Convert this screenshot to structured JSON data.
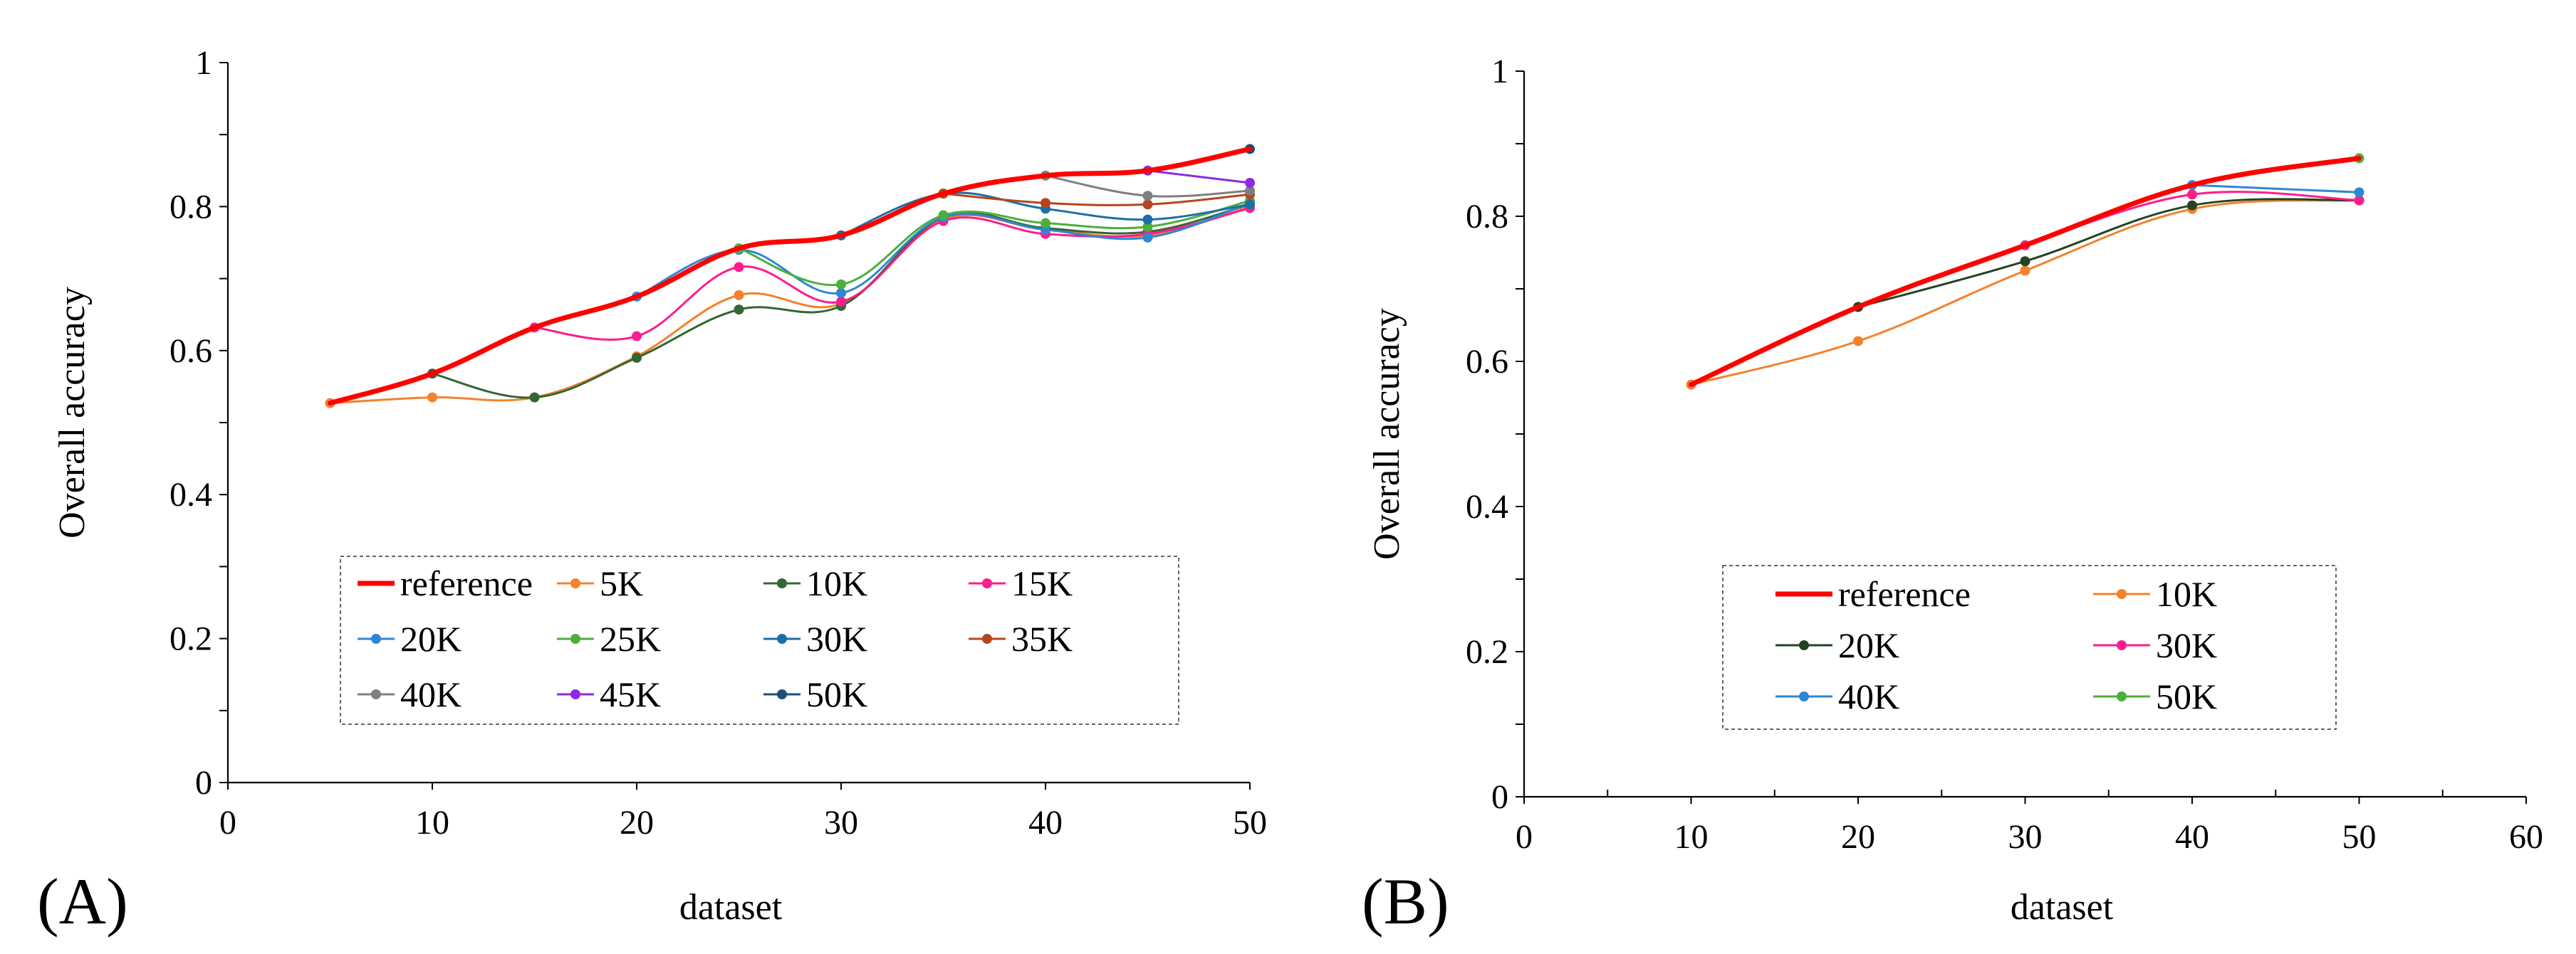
{
  "chart_data": [
    {
      "type": "line",
      "panel_label": "(A)",
      "xlabel": "dataset",
      "ylabel": "Overall accuracy",
      "xlim": [
        0,
        50
      ],
      "ylim": [
        0,
        1
      ],
      "x_ticks": [
        "0",
        "10",
        "20",
        "30",
        "40",
        "50"
      ],
      "y_ticks": [
        "0",
        "0.2",
        "0.4",
        "0.6",
        "0.8",
        "1"
      ],
      "legend_position": "bottom-center",
      "series": [
        {
          "name": "reference",
          "color": "#ff0000",
          "marker": false,
          "x": [
            5,
            10,
            15,
            20,
            25,
            30,
            35,
            40,
            45,
            50
          ],
          "values": [
            0.527,
            0.568,
            0.632,
            0.675,
            0.742,
            0.76,
            0.818,
            0.843,
            0.85,
            0.88
          ]
        },
        {
          "name": "5K",
          "color": "#f4812c",
          "marker": true,
          "x": [
            5,
            10,
            15,
            20,
            25,
            30,
            35,
            40,
            45,
            50
          ],
          "values": [
            0.527,
            0.535,
            0.535,
            0.592,
            0.677,
            0.665,
            0.782,
            0.768,
            0.76,
            0.8
          ]
        },
        {
          "name": "10K",
          "color": "#336633",
          "marker": true,
          "x": [
            10,
            15,
            20,
            25,
            30,
            35,
            40,
            45,
            50
          ],
          "values": [
            0.568,
            0.535,
            0.59,
            0.657,
            0.662,
            0.785,
            0.77,
            0.765,
            0.803
          ]
        },
        {
          "name": "15K",
          "color": "#ff1c8c",
          "marker": true,
          "x": [
            15,
            20,
            25,
            30,
            35,
            40,
            45,
            50
          ],
          "values": [
            0.632,
            0.62,
            0.716,
            0.668,
            0.78,
            0.762,
            0.762,
            0.798
          ]
        },
        {
          "name": "20K",
          "color": "#2f86d3",
          "marker": true,
          "x": [
            20,
            25,
            30,
            35,
            40,
            45,
            50
          ],
          "values": [
            0.675,
            0.74,
            0.68,
            0.785,
            0.768,
            0.757,
            0.805
          ]
        },
        {
          "name": "25K",
          "color": "#4caf3a",
          "marker": true,
          "x": [
            25,
            30,
            35,
            40,
            45,
            50
          ],
          "values": [
            0.742,
            0.692,
            0.788,
            0.777,
            0.772,
            0.808
          ]
        },
        {
          "name": "30K",
          "color": "#1b6fa6",
          "marker": true,
          "x": [
            30,
            35,
            40,
            45,
            50
          ],
          "values": [
            0.76,
            0.818,
            0.797,
            0.782,
            0.803
          ]
        },
        {
          "name": "35K",
          "color": "#b5461b",
          "marker": true,
          "x": [
            35,
            40,
            45,
            50
          ],
          "values": [
            0.818,
            0.805,
            0.803,
            0.817
          ]
        },
        {
          "name": "40K",
          "color": "#7f7f7f",
          "marker": true,
          "x": [
            40,
            45,
            50
          ],
          "values": [
            0.843,
            0.815,
            0.822
          ]
        },
        {
          "name": "45K",
          "color": "#8a2be2",
          "marker": true,
          "x": [
            45,
            50
          ],
          "values": [
            0.85,
            0.833
          ]
        },
        {
          "name": "50K",
          "color": "#1f4e79",
          "marker": true,
          "x": [
            50
          ],
          "values": [
            0.88
          ]
        }
      ]
    },
    {
      "type": "line",
      "panel_label": "(B)",
      "xlabel": "dataset",
      "ylabel": "Overall accuracy",
      "xlim": [
        0,
        60
      ],
      "ylim": [
        0,
        1
      ],
      "x_ticks": [
        "0",
        "10",
        "20",
        "30",
        "40",
        "50",
        "60"
      ],
      "y_ticks": [
        "0",
        "0.2",
        "0.4",
        "0.6",
        "0.8",
        "1"
      ],
      "legend_position": "bottom-center",
      "series": [
        {
          "name": "reference",
          "color": "#ff0000",
          "marker": false,
          "x": [
            10,
            20,
            30,
            40,
            50
          ],
          "values": [
            0.568,
            0.675,
            0.76,
            0.843,
            0.88
          ]
        },
        {
          "name": "10K",
          "color": "#f4812c",
          "marker": true,
          "x": [
            10,
            20,
            30,
            40,
            50
          ],
          "values": [
            0.568,
            0.628,
            0.725,
            0.81,
            0.822
          ]
        },
        {
          "name": "20K",
          "color": "#224422",
          "marker": true,
          "x": [
            20,
            30,
            40,
            50
          ],
          "values": [
            0.675,
            0.738,
            0.815,
            0.822
          ]
        },
        {
          "name": "30K",
          "color": "#ff1c8c",
          "marker": true,
          "x": [
            30,
            40,
            50
          ],
          "values": [
            0.76,
            0.83,
            0.822
          ]
        },
        {
          "name": "40K",
          "color": "#2f86d3",
          "marker": true,
          "x": [
            40,
            50
          ],
          "values": [
            0.843,
            0.833
          ]
        },
        {
          "name": "50K",
          "color": "#4caf3a",
          "marker": true,
          "x": [
            50
          ],
          "values": [
            0.88
          ]
        }
      ]
    }
  ]
}
